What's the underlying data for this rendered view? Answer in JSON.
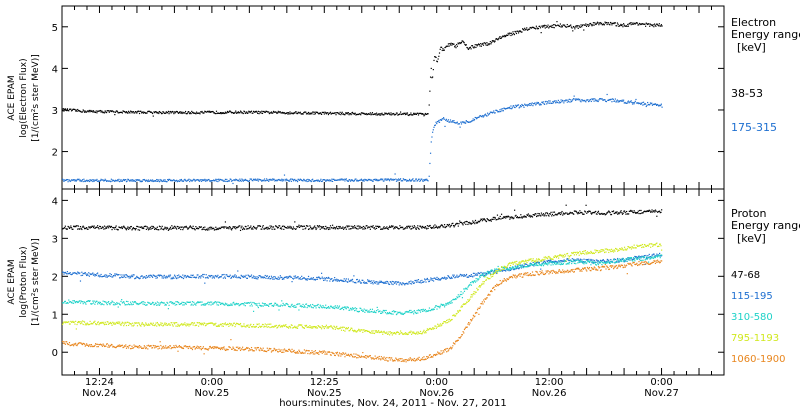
{
  "chart_data": [
    {
      "type": "scatter",
      "panel": "electron",
      "ylabel_lines": [
        "ACE EPAM",
        "log(Electron Flux)",
        "[1/(cm²s ster MeV)]"
      ],
      "legend_title": [
        "Electron",
        "Energy range",
        "[keV]"
      ],
      "ylim": [
        1.1,
        5.5
      ],
      "yticks": [
        2,
        3,
        4,
        5
      ],
      "series": [
        {
          "name": "38-53",
          "color": "#000000",
          "baseline": [
            [
              0,
              3.02
            ],
            [
              4,
              2.98
            ],
            [
              12,
              2.96
            ],
            [
              20,
              2.95
            ],
            [
              28,
              2.96
            ],
            [
              36,
              2.95
            ],
            [
              44,
              2.93
            ],
            [
              50,
              2.92
            ],
            [
              56,
              2.91
            ],
            [
              58.6,
              2.9
            ]
          ],
          "points": [
            [
              58.7,
              3.1
            ],
            [
              59,
              4.1
            ],
            [
              59.2,
              3.7
            ],
            [
              59.5,
              4.3
            ],
            [
              60,
              4.2
            ],
            [
              60.5,
              4.5
            ],
            [
              61,
              4.45
            ],
            [
              62,
              4.6
            ],
            [
              63,
              4.55
            ],
            [
              64,
              4.65
            ],
            [
              65,
              4.5
            ],
            [
              66,
              4.55
            ],
            [
              68,
              4.6
            ],
            [
              70,
              4.75
            ],
            [
              72,
              4.85
            ],
            [
              74,
              4.95
            ],
            [
              76,
              5.0
            ],
            [
              78,
              5.02
            ],
            [
              80,
              5.05
            ],
            [
              82,
              5.0
            ],
            [
              84,
              5.05
            ],
            [
              86,
              5.1
            ],
            [
              88,
              5.08
            ],
            [
              90,
              5.05
            ],
            [
              92,
              5.1
            ],
            [
              94,
              5.05
            ],
            [
              96,
              5.05
            ]
          ]
        },
        {
          "name": "175-315",
          "color": "#1e6fd0",
          "baseline": [
            [
              0,
              1.32
            ],
            [
              8,
              1.32
            ],
            [
              16,
              1.32
            ],
            [
              24,
              1.32
            ],
            [
              32,
              1.33
            ],
            [
              40,
              1.32
            ],
            [
              48,
              1.33
            ],
            [
              56,
              1.33
            ],
            [
              58.6,
              1.32
            ]
          ],
          "points": [
            [
              58.7,
              1.4
            ],
            [
              59,
              2.2
            ],
            [
              59.3,
              2.5
            ],
            [
              59.8,
              2.7
            ],
            [
              60.5,
              2.75
            ],
            [
              61,
              2.8
            ],
            [
              62,
              2.75
            ],
            [
              63,
              2.72
            ],
            [
              64,
              2.7
            ],
            [
              66,
              2.8
            ],
            [
              68,
              2.9
            ],
            [
              70,
              3.0
            ],
            [
              72,
              3.08
            ],
            [
              74,
              3.12
            ],
            [
              76,
              3.16
            ],
            [
              78,
              3.2
            ],
            [
              80,
              3.22
            ],
            [
              82,
              3.25
            ],
            [
              84,
              3.25
            ],
            [
              86,
              3.25
            ],
            [
              88,
              3.25
            ],
            [
              90,
              3.22
            ],
            [
              92,
              3.18
            ],
            [
              94,
              3.15
            ],
            [
              96,
              3.12
            ]
          ]
        }
      ]
    },
    {
      "type": "scatter",
      "panel": "proton",
      "ylabel_lines": [
        "ACE EPAM",
        "log(Proton Flux)",
        "[1/(cm²s ster MeV)]"
      ],
      "legend_title": [
        "Proton",
        "Energy range",
        "[keV]"
      ],
      "ylim": [
        -0.6,
        4.3
      ],
      "yticks": [
        0,
        1,
        2,
        3,
        4
      ],
      "series": [
        {
          "name": "47-68",
          "color": "#000000",
          "points": [
            [
              0,
              3.3
            ],
            [
              6,
              3.3
            ],
            [
              12,
              3.28
            ],
            [
              18,
              3.3
            ],
            [
              24,
              3.28
            ],
            [
              30,
              3.3
            ],
            [
              36,
              3.3
            ],
            [
              42,
              3.3
            ],
            [
              48,
              3.3
            ],
            [
              54,
              3.3
            ],
            [
              58,
              3.3
            ],
            [
              62,
              3.35
            ],
            [
              66,
              3.45
            ],
            [
              70,
              3.55
            ],
            [
              74,
              3.6
            ],
            [
              78,
              3.65
            ],
            [
              82,
              3.7
            ],
            [
              86,
              3.68
            ],
            [
              90,
              3.7
            ],
            [
              94,
              3.72
            ],
            [
              96,
              3.72
            ]
          ]
        },
        {
          "name": "115-195",
          "color": "#1e6fd0",
          "points": [
            [
              0,
              2.1
            ],
            [
              6,
              2.05
            ],
            [
              12,
              2.0
            ],
            [
              18,
              2.0
            ],
            [
              24,
              2.02
            ],
            [
              30,
              2.0
            ],
            [
              36,
              1.98
            ],
            [
              42,
              1.95
            ],
            [
              48,
              1.88
            ],
            [
              54,
              1.82
            ],
            [
              58,
              1.9
            ],
            [
              62,
              2.0
            ],
            [
              66,
              2.05
            ],
            [
              70,
              2.15
            ],
            [
              74,
              2.3
            ],
            [
              78,
              2.4
            ],
            [
              82,
              2.45
            ],
            [
              86,
              2.4
            ],
            [
              90,
              2.45
            ],
            [
              94,
              2.55
            ],
            [
              96,
              2.6
            ]
          ]
        },
        {
          "name": "310-580",
          "color": "#1fd2c8",
          "points": [
            [
              0,
              1.35
            ],
            [
              6,
              1.32
            ],
            [
              12,
              1.3
            ],
            [
              18,
              1.3
            ],
            [
              24,
              1.3
            ],
            [
              30,
              1.28
            ],
            [
              36,
              1.25
            ],
            [
              42,
              1.22
            ],
            [
              48,
              1.12
            ],
            [
              54,
              1.05
            ],
            [
              58,
              1.1
            ],
            [
              62,
              1.3
            ],
            [
              64,
              1.6
            ],
            [
              66,
              1.9
            ],
            [
              68,
              2.1
            ],
            [
              70,
              2.2
            ],
            [
              74,
              2.3
            ],
            [
              78,
              2.35
            ],
            [
              82,
              2.4
            ],
            [
              86,
              2.35
            ],
            [
              90,
              2.45
            ],
            [
              94,
              2.5
            ],
            [
              96,
              2.55
            ]
          ]
        },
        {
          "name": "795-1193",
          "color": "#d0e81e",
          "points": [
            [
              0,
              0.8
            ],
            [
              6,
              0.78
            ],
            [
              12,
              0.75
            ],
            [
              18,
              0.75
            ],
            [
              24,
              0.75
            ],
            [
              30,
              0.72
            ],
            [
              36,
              0.7
            ],
            [
              42,
              0.68
            ],
            [
              48,
              0.58
            ],
            [
              54,
              0.5
            ],
            [
              58,
              0.55
            ],
            [
              62,
              0.85
            ],
            [
              64,
              1.2
            ],
            [
              66,
              1.6
            ],
            [
              68,
              1.95
            ],
            [
              70,
              2.2
            ],
            [
              72,
              2.35
            ],
            [
              76,
              2.45
            ],
            [
              80,
              2.55
            ],
            [
              84,
              2.65
            ],
            [
              88,
              2.7
            ],
            [
              92,
              2.8
            ],
            [
              96,
              2.85
            ]
          ]
        },
        {
          "name": "1060-1900",
          "color": "#e8861e",
          "points": [
            [
              0,
              0.25
            ],
            [
              6,
              0.2
            ],
            [
              12,
              0.15
            ],
            [
              18,
              0.15
            ],
            [
              24,
              0.12
            ],
            [
              30,
              0.1
            ],
            [
              36,
              0.05
            ],
            [
              42,
              0.0
            ],
            [
              48,
              -0.1
            ],
            [
              54,
              -0.2
            ],
            [
              58,
              -0.15
            ],
            [
              62,
              0.1
            ],
            [
              64,
              0.5
            ],
            [
              66,
              1.0
            ],
            [
              68,
              1.5
            ],
            [
              70,
              1.85
            ],
            [
              72,
              2.0
            ],
            [
              76,
              2.1
            ],
            [
              80,
              2.15
            ],
            [
              84,
              2.2
            ],
            [
              88,
              2.25
            ],
            [
              92,
              2.35
            ],
            [
              96,
              2.4
            ]
          ]
        }
      ]
    }
  ],
  "xaxis": {
    "xlim": [
      0,
      106
    ],
    "ticks": [
      {
        "hour": 6,
        "line1": "12:24",
        "line2": "Nov.24"
      },
      {
        "hour": 24,
        "line1": "0:00",
        "line2": "Nov.25"
      },
      {
        "hour": 42,
        "line1": "12:25",
        "line2": "Nov.25"
      },
      {
        "hour": 60,
        "line1": "0:00",
        "line2": "Nov.26"
      },
      {
        "hour": 78,
        "line1": "12:00",
        "line2": "Nov.26"
      },
      {
        "hour": 96,
        "line1": "0:00",
        "line2": "Nov.27"
      }
    ],
    "xlabel": "hours:minutes, Nov. 24, 2011 - Nov. 27, 2011"
  }
}
